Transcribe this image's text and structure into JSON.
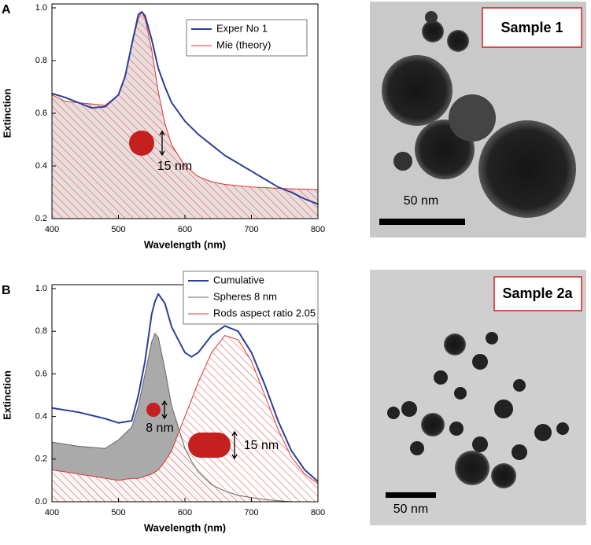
{
  "chart_data": [
    {
      "type": "line",
      "panel": "A",
      "xlabel": "Wavelength (nm)",
      "ylabel": "Extinction",
      "x": [
        400,
        420,
        440,
        460,
        480,
        500,
        510,
        520,
        530,
        535,
        540,
        550,
        560,
        570,
        580,
        600,
        620,
        640,
        660,
        680,
        700,
        720,
        740,
        760,
        780,
        800
      ],
      "series": [
        {
          "name": "Exper No 1",
          "color": "#2b3f9a",
          "values": [
            0.675,
            0.66,
            0.64,
            0.62,
            0.625,
            0.67,
            0.74,
            0.86,
            0.975,
            0.985,
            0.97,
            0.88,
            0.77,
            0.7,
            0.64,
            0.57,
            0.52,
            0.48,
            0.44,
            0.41,
            0.38,
            0.35,
            0.32,
            0.3,
            0.275,
            0.255
          ]
        },
        {
          "name": "Mie (theory)",
          "color": "#e03030",
          "fill": "hatched",
          "values": [
            0.67,
            0.645,
            0.64,
            0.635,
            0.63,
            0.67,
            0.74,
            0.86,
            0.96,
            0.985,
            0.96,
            0.84,
            0.68,
            0.56,
            0.48,
            0.4,
            0.36,
            0.34,
            0.33,
            0.325,
            0.32,
            0.318,
            0.315,
            0.313,
            0.312,
            0.31
          ]
        }
      ],
      "xlim": [
        400,
        800
      ],
      "xticks": [
        400,
        500,
        600,
        700,
        800
      ],
      "ylim": [
        0.2,
        1.0
      ],
      "yticks": [
        0.2,
        0.4,
        0.6,
        0.8,
        {
          "value": 1.0,
          "label": "1.0"
        }
      ],
      "legend": "upper right",
      "annotations": [
        "15 nm"
      ]
    },
    {
      "type": "line",
      "panel": "B",
      "xlabel": "Wavelength (nm)",
      "ylabel": "Extinction",
      "x": [
        400,
        440,
        480,
        500,
        520,
        530,
        540,
        550,
        555,
        560,
        570,
        580,
        600,
        610,
        620,
        640,
        660,
        680,
        700,
        720,
        740,
        760,
        780,
        800
      ],
      "series": [
        {
          "name": "Cumulative",
          "color": "#2b3f9a",
          "values": [
            0.44,
            0.42,
            0.39,
            0.37,
            0.38,
            0.5,
            0.66,
            0.88,
            0.94,
            0.975,
            0.93,
            0.82,
            0.7,
            0.68,
            0.7,
            0.78,
            0.825,
            0.8,
            0.7,
            0.55,
            0.38,
            0.24,
            0.15,
            0.095
          ]
        },
        {
          "name": "Spheres 8 nm",
          "color": "#666666",
          "fill": "solid",
          "values": [
            0.28,
            0.26,
            0.25,
            0.29,
            0.35,
            0.45,
            0.6,
            0.75,
            0.79,
            0.77,
            0.62,
            0.45,
            0.25,
            0.19,
            0.14,
            0.08,
            0.05,
            0.03,
            0.02,
            0.01,
            0.005,
            0,
            0,
            0
          ]
        },
        {
          "name": "Rods aspect ratio 2.05",
          "color": "#e03030",
          "fill": "hatched",
          "values": [
            0.15,
            0.13,
            0.11,
            0.1,
            0.11,
            0.11,
            0.12,
            0.13,
            0.14,
            0.15,
            0.19,
            0.24,
            0.4,
            0.48,
            0.56,
            0.7,
            0.78,
            0.76,
            0.66,
            0.5,
            0.34,
            0.21,
            0.13,
            0.085
          ]
        }
      ],
      "xlim": [
        400,
        800
      ],
      "xticks": [
        400,
        500,
        600,
        700,
        800
      ],
      "ylim": [
        0,
        1.0
      ],
      "yticks": [
        {
          "value": 0,
          "label": "0.0"
        },
        0.2,
        0.4,
        0.6,
        0.8,
        {
          "value": 1.0,
          "label": "1.0"
        }
      ],
      "legend": "upper right",
      "annotations": [
        "8 nm",
        "15 nm"
      ]
    }
  ],
  "images": [
    {
      "label": "Sample 1",
      "scale_bar": "50 nm"
    },
    {
      "label": "Sample 2a",
      "scale_bar": "50 nm"
    }
  ]
}
